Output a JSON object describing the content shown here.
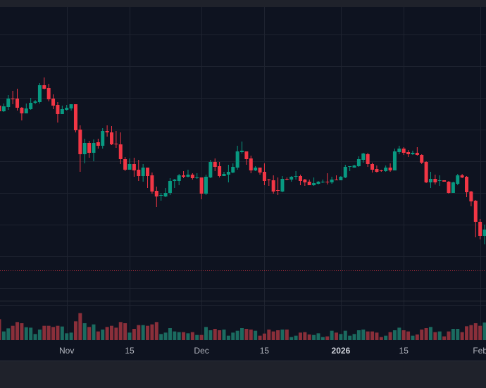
{
  "chart_data": {
    "type": "candlestick",
    "title": "",
    "interval": "1D",
    "start_date": "2025-10-17",
    "end_date": "2026-02-02",
    "price_axis_visible": false,
    "ylim": [
      23,
      440
    ],
    "y_gridlines": [
      401,
      356,
      311,
      266,
      221,
      176,
      131,
      86,
      41
    ],
    "price_line": 66,
    "x_ticks": [
      {
        "label": "Nov",
        "index": 15,
        "major": false
      },
      {
        "label": "15",
        "index": 29,
        "major": false
      },
      {
        "label": "Dec",
        "index": 45,
        "major": false
      },
      {
        "label": "15",
        "index": 59,
        "major": false
      },
      {
        "label": "2026",
        "index": 76,
        "major": true
      },
      {
        "label": "15",
        "index": 90,
        "major": false
      },
      {
        "label": "Feb",
        "index": 107,
        "major": false
      }
    ],
    "ohlc_fields": [
      "open",
      "high",
      "low",
      "close"
    ],
    "ohlc": [
      [
        300,
        301,
        292,
        292
      ],
      [
        292,
        303,
        291,
        299
      ],
      [
        298,
        315,
        294,
        310
      ],
      [
        310,
        321,
        302,
        309
      ],
      [
        310,
        324,
        293,
        297
      ],
      [
        297,
        298,
        279,
        289
      ],
      [
        289,
        303,
        289,
        296
      ],
      [
        295,
        311,
        294,
        304
      ],
      [
        304,
        308,
        302,
        306
      ],
      [
        305,
        332,
        303,
        329
      ],
      [
        329,
        340,
        323,
        324
      ],
      [
        325,
        331,
        306,
        309
      ],
      [
        310,
        316,
        295,
        300
      ],
      [
        301,
        305,
        276,
        288
      ],
      [
        288,
        300,
        288,
        295
      ],
      [
        294,
        301,
        293,
        297
      ],
      [
        296,
        302,
        293,
        302
      ],
      [
        302,
        302,
        262,
        265
      ],
      [
        266,
        272,
        206,
        231
      ],
      [
        231,
        253,
        218,
        247
      ],
      [
        247,
        250,
        226,
        233
      ],
      [
        233,
        252,
        221,
        247
      ],
      [
        248,
        253,
        239,
        243
      ],
      [
        243,
        268,
        239,
        264
      ],
      [
        264,
        272,
        256,
        262
      ],
      [
        262,
        271,
        244,
        245
      ],
      [
        246,
        264,
        240,
        245
      ],
      [
        245,
        262,
        217,
        224
      ],
      [
        224,
        227,
        207,
        209
      ],
      [
        209,
        225,
        209,
        217
      ],
      [
        217,
        226,
        199,
        208
      ],
      [
        209,
        223,
        193,
        200
      ],
      [
        200,
        217,
        192,
        212
      ],
      [
        212,
        212,
        183,
        200
      ],
      [
        201,
        205,
        175,
        178
      ],
      [
        179,
        185,
        156,
        171
      ],
      [
        172,
        176,
        165,
        173
      ],
      [
        171,
        183,
        170,
        176
      ],
      [
        176,
        197,
        173,
        193
      ],
      [
        193,
        196,
        183,
        195
      ],
      [
        193,
        203,
        187,
        201
      ],
      [
        201,
        207,
        197,
        199
      ],
      [
        199,
        209,
        198,
        202
      ],
      [
        202,
        204,
        195,
        197
      ],
      [
        197,
        204,
        196,
        198
      ],
      [
        198,
        198,
        167,
        175
      ],
      [
        175,
        202,
        173,
        199
      ],
      [
        198,
        223,
        197,
        220
      ],
      [
        220,
        225,
        207,
        213
      ],
      [
        214,
        220,
        198,
        200
      ],
      [
        200,
        206,
        200,
        203
      ],
      [
        202,
        216,
        191,
        206
      ],
      [
        205,
        218,
        204,
        213
      ],
      [
        212,
        243,
        209,
        235
      ],
      [
        234,
        249,
        232,
        236
      ],
      [
        235,
        235,
        216,
        224
      ],
      [
        225,
        229,
        204,
        208
      ],
      [
        208,
        214,
        207,
        212
      ],
      [
        212,
        212,
        202,
        205
      ],
      [
        206,
        218,
        187,
        193
      ],
      [
        195,
        196,
        186,
        194
      ],
      [
        194,
        201,
        175,
        178
      ],
      [
        180,
        198,
        173,
        179
      ],
      [
        178,
        200,
        177,
        196
      ],
      [
        196,
        198,
        194,
        195
      ],
      [
        195,
        200,
        192,
        199
      ],
      [
        199,
        207,
        195,
        200
      ],
      [
        200,
        202,
        187,
        193
      ],
      [
        195,
        196,
        186,
        191
      ],
      [
        192,
        195,
        187,
        187
      ],
      [
        187,
        198,
        186,
        190
      ],
      [
        189,
        193,
        188,
        192
      ],
      [
        191,
        195,
        190,
        192
      ],
      [
        192,
        204,
        188,
        191
      ],
      [
        191,
        199,
        189,
        195
      ],
      [
        195,
        201,
        194,
        194
      ],
      [
        194,
        200,
        194,
        199
      ],
      [
        198,
        216,
        197,
        213
      ],
      [
        213,
        214,
        207,
        214
      ],
      [
        212,
        216,
        212,
        215
      ],
      [
        214,
        228,
        213,
        224
      ],
      [
        223,
        233,
        219,
        232
      ],
      [
        231,
        233,
        213,
        217
      ],
      [
        217,
        219,
        205,
        209
      ],
      [
        210,
        215,
        205,
        206
      ],
      [
        208,
        209,
        206,
        207
      ],
      [
        207,
        215,
        206,
        212
      ],
      [
        212,
        218,
        206,
        208
      ],
      [
        208,
        239,
        208,
        235
      ],
      [
        234,
        243,
        231,
        239
      ],
      [
        239,
        241,
        230,
        233
      ],
      [
        234,
        237,
        227,
        231
      ],
      [
        231,
        236,
        230,
        233
      ],
      [
        233,
        241,
        229,
        230
      ],
      [
        230,
        231,
        217,
        219
      ],
      [
        220,
        221,
        190,
        191
      ],
      [
        191,
        206,
        183,
        196
      ],
      [
        196,
        202,
        188,
        191
      ],
      [
        193,
        201,
        186,
        194
      ],
      [
        194,
        194,
        192,
        192
      ],
      [
        192,
        193,
        175,
        176
      ],
      [
        176,
        192,
        176,
        191
      ],
      [
        189,
        203,
        187,
        201
      ],
      [
        201,
        203,
        197,
        198
      ],
      [
        199,
        200,
        170,
        177
      ],
      [
        178,
        179,
        157,
        164
      ],
      [
        165,
        166,
        113,
        135
      ],
      [
        135,
        139,
        110,
        115
      ],
      [
        115,
        131,
        103,
        124
      ]
    ],
    "volume": [
      89,
      37,
      50,
      61,
      77,
      72,
      55,
      53,
      26,
      45,
      61,
      61,
      56,
      61,
      58,
      29,
      32,
      80,
      115,
      72,
      56,
      67,
      37,
      45,
      56,
      61,
      53,
      77,
      72,
      32,
      48,
      64,
      64,
      61,
      67,
      77,
      26,
      32,
      51,
      37,
      34,
      34,
      29,
      34,
      22,
      22,
      56,
      42,
      48,
      42,
      45,
      19,
      32,
      40,
      51,
      48,
      45,
      40,
      19,
      28,
      45,
      37,
      42,
      45,
      45,
      13,
      19,
      32,
      34,
      24,
      22,
      29,
      13,
      16,
      40,
      32,
      26,
      40,
      19,
      26,
      42,
      45,
      37,
      37,
      32,
      13,
      19,
      34,
      42,
      53,
      42,
      37,
      19,
      24,
      45,
      51,
      56,
      34,
      37,
      16,
      37,
      48,
      48,
      34,
      59,
      64,
      72,
      61,
      75
    ],
    "colors": {
      "up": "#089981",
      "down": "#f23645",
      "up_volume": "#1b6b60",
      "down_volume": "#8a2f3a",
      "background": "#0e1320",
      "grid": "#1e2330",
      "price_line": "#c2303e"
    }
  }
}
